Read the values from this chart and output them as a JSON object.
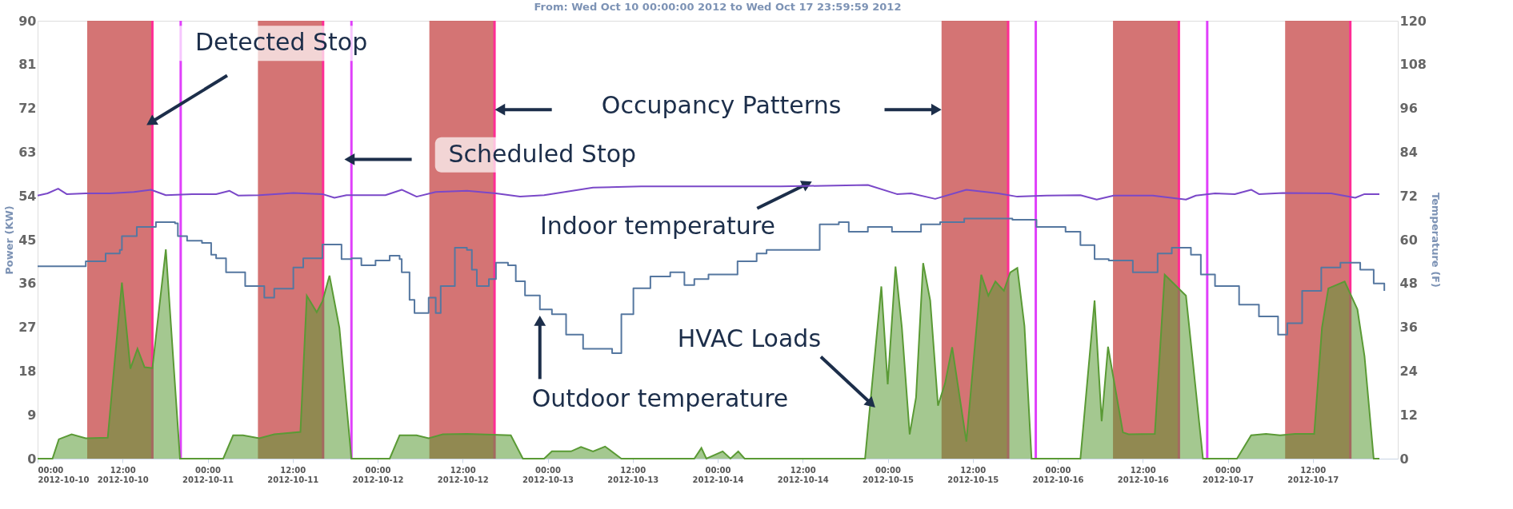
{
  "chart_data": {
    "type": "line",
    "title": "From: Wed Oct 10 00:00:00 2012 to Wed Oct 17 23:59:59 2012",
    "ylabel": "Power (KW)",
    "y2label": "Temperature (F)",
    "xlim": [
      "2012-10-10T00:00",
      "2012-10-18T00:00"
    ],
    "xticks": [
      {
        "value": "2012-10-10T00:00",
        "label": "00:00 2012-10-10"
      },
      {
        "value": "2012-10-10T12:00",
        "label": "12:00 2012-10-10"
      },
      {
        "value": "2012-10-11T00:00",
        "label": "00:00 2012-10-11"
      },
      {
        "value": "2012-10-11T12:00",
        "label": "12:00 2012-10-11"
      },
      {
        "value": "2012-10-12T00:00",
        "label": "00:00 2012-10-12"
      },
      {
        "value": "2012-10-12T12:00",
        "label": "12:00 2012-10-12"
      },
      {
        "value": "2012-10-13T00:00",
        "label": "00:00 2012-10-13"
      },
      {
        "value": "2012-10-13T12:00",
        "label": "12:00 2012-10-13"
      },
      {
        "value": "2012-10-14T00:00",
        "label": "00:00 2012-10-14"
      },
      {
        "value": "2012-10-14T12:00",
        "label": "12:00 2012-10-14"
      },
      {
        "value": "2012-10-15T00:00",
        "label": "00:00 2012-10-15"
      },
      {
        "value": "2012-10-15T12:00",
        "label": "12:00 2012-10-15"
      },
      {
        "value": "2012-10-16T00:00",
        "label": "00:00 2012-10-16"
      },
      {
        "value": "2012-10-16T12:00",
        "label": "12:00 2012-10-16"
      },
      {
        "value": "2012-10-17T00:00",
        "label": "00:00 2012-10-17"
      },
      {
        "value": "2012-10-17T12:00",
        "label": "12:00 2012-10-17"
      }
    ],
    "ylim": [
      0,
      90
    ],
    "yticks": [
      0,
      9,
      18,
      27,
      36,
      45,
      54,
      63,
      72,
      81,
      90
    ],
    "y2lim": [
      0,
      120
    ],
    "y2ticks": [
      0,
      12,
      24,
      36,
      48,
      60,
      72,
      84,
      96,
      108,
      120
    ],
    "grid": false,
    "series": [
      {
        "type": "area",
        "axis": "y",
        "color": "#5a9a35",
        "x": [
          "2012-10-10T00:00",
          "2012-10-10T02:06",
          "2012-10-10T03:00",
          "2012-10-10T04:48",
          "2012-10-10T06:48",
          "2012-10-10T09:54",
          "2012-10-10T11:54",
          "2012-10-10T13:06",
          "2012-10-10T14:06",
          "2012-10-10T15:06",
          "2012-10-10T16:12",
          "2012-10-10T18:06",
          "2012-10-10T20:06",
          "2012-10-11T02:12",
          "2012-10-11T03:36",
          "2012-10-11T05:00",
          "2012-10-11T07:18",
          "2012-10-11T09:24",
          "2012-10-11T13:06",
          "2012-10-11T14:00",
          "2012-10-11T15:24",
          "2012-10-11T16:12",
          "2012-10-11T17:12",
          "2012-10-11T18:36",
          "2012-10-11T20:18",
          "2012-10-12T01:42",
          "2012-10-12T03:06",
          "2012-10-12T05:30",
          "2012-10-12T07:12",
          "2012-10-12T09:12",
          "2012-10-12T12:36",
          "2012-10-12T18:48",
          "2012-10-12T20:30",
          "2012-10-12T23:30",
          "2012-10-13T00:36",
          "2012-10-13T03:18",
          "2012-10-13T04:42",
          "2012-10-13T06:24",
          "2012-10-13T08:06",
          "2012-10-13T10:24",
          "2012-10-13T20:42",
          "2012-10-13T21:42",
          "2012-10-13T22:24",
          "2012-10-14T00:42",
          "2012-10-14T01:48",
          "2012-10-14T02:54",
          "2012-10-14T03:48",
          "2012-10-14T20:48",
          "2012-10-14T23:06",
          "2012-10-15T00:00",
          "2012-10-15T01:06",
          "2012-10-15T02:00",
          "2012-10-15T03:06",
          "2012-10-15T04:00",
          "2012-10-15T05:00",
          "2012-10-15T06:00",
          "2012-10-15T07:06",
          "2012-10-15T08:06",
          "2012-10-15T09:06",
          "2012-10-15T11:06",
          "2012-10-15T13:12",
          "2012-10-15T14:12",
          "2012-10-15T15:12",
          "2012-10-15T16:24",
          "2012-10-15T17:18",
          "2012-10-15T18:18",
          "2012-10-15T19:18",
          "2012-10-15T20:18",
          "2012-10-16T03:12",
          "2012-10-16T05:12",
          "2012-10-16T06:12",
          "2012-10-16T07:06",
          "2012-10-16T09:12",
          "2012-10-16T10:00",
          "2012-10-16T13:42",
          "2012-10-16T15:06",
          "2012-10-16T18:06",
          "2012-10-16T20:30",
          "2012-10-17T01:18",
          "2012-10-17T03:18",
          "2012-10-17T05:24",
          "2012-10-17T07:24",
          "2012-10-17T09:30",
          "2012-10-17T12:12",
          "2012-10-17T13:18",
          "2012-10-17T14:12",
          "2012-10-17T16:30",
          "2012-10-17T18:18",
          "2012-10-17T19:18",
          "2012-10-17T20:36",
          "2012-10-17T21:24"
        ],
        "values": [
          0,
          0,
          4.0,
          5.0,
          4.2,
          4.3,
          36.2,
          18.5,
          22.6,
          18.8,
          18.6,
          43,
          0,
          0,
          4.8,
          4.8,
          4.2,
          5.0,
          5.5,
          33.5,
          30.1,
          32.3,
          37.6,
          26.9,
          0,
          0,
          4.8,
          4.8,
          4.2,
          5.0,
          5.1,
          4.8,
          0,
          0,
          1.5,
          1.5,
          2.4,
          1.5,
          2.5,
          0,
          0,
          2.2,
          0,
          1.5,
          0,
          1.5,
          0,
          0,
          35.4,
          15.3,
          39.5,
          26.9,
          5.0,
          12.6,
          40.2,
          32.5,
          10.9,
          15.5,
          22.9,
          3.5,
          37.8,
          33.5,
          36.4,
          34.5,
          38.3,
          39.2,
          27.3,
          0,
          0,
          32.5,
          7.7,
          23.0,
          5.4,
          5.0,
          5.1,
          37.8,
          33.5,
          0,
          0,
          4.8,
          5.1,
          4.8,
          5.1,
          5.1,
          26.9,
          35.0,
          36.4,
          30.7,
          21.1,
          0,
          0
        ]
      },
      {
        "axis": "y2",
        "color": "#7a48c8",
        "x": [
          "2012-10-10T00:00",
          "2012-10-10T01:24",
          "2012-10-10T02:54",
          "2012-10-10T04:06",
          "2012-10-10T06:48",
          "2012-10-10T10:12",
          "2012-10-10T13:36",
          "2012-10-10T16:00",
          "2012-10-10T18:06",
          "2012-10-10T21:48",
          "2012-10-11T01:12",
          "2012-10-11T03:06",
          "2012-10-11T04:18",
          "2012-10-11T07:18",
          "2012-10-11T12:06",
          "2012-10-11T16:12",
          "2012-10-11T17:54",
          "2012-10-11T19:36",
          "2012-10-12T01:06",
          "2012-10-12T03:24",
          "2012-10-12T05:30",
          "2012-10-12T08:12",
          "2012-10-12T12:36",
          "2012-10-12T16:42",
          "2012-10-12T20:06",
          "2012-10-12T23:30",
          "2012-10-13T06:24",
          "2012-10-13T13:12",
          "2012-10-13T22:42",
          "2012-10-14T08:54",
          "2012-10-14T21:12",
          "2012-10-15T01:18",
          "2012-10-15T03:18",
          "2012-10-15T06:42",
          "2012-10-15T11:06",
          "2012-10-15T15:36",
          "2012-10-15T18:18",
          "2012-10-15T22:24",
          "2012-10-16T03:12",
          "2012-10-16T05:30",
          "2012-10-16T07:54",
          "2012-10-16T13:24",
          "2012-10-16T18:06",
          "2012-10-16T19:30",
          "2012-10-16T22:12",
          "2012-10-17T01:00",
          "2012-10-17T03:18",
          "2012-10-17T04:24",
          "2012-10-17T07:48",
          "2012-10-17T14:36",
          "2012-10-17T18:00",
          "2012-10-17T19:18",
          "2012-10-17T21:24"
        ],
        "values": [
          72.1,
          72.7,
          74.0,
          72.5,
          72.7,
          72.7,
          73.1,
          73.7,
          72.2,
          72.5,
          72.5,
          73.4,
          72.1,
          72.2,
          72.8,
          72.5,
          71.5,
          72.2,
          72.2,
          73.7,
          71.8,
          73.1,
          73.4,
          72.7,
          71.8,
          72.2,
          74.3,
          74.6,
          74.6,
          74.6,
          75.0,
          72.5,
          72.7,
          71.2,
          73.7,
          72.7,
          71.8,
          72.1,
          72.2,
          71.0,
          72.1,
          72.1,
          71.0,
          72.1,
          72.7,
          72.5,
          73.7,
          72.5,
          72.8,
          72.7,
          71.5,
          72.5,
          72.5
        ]
      },
      {
        "type": "step",
        "axis": "y2",
        "color": "#5577a0",
        "x": [
          "2012-10-10T00:00",
          "2012-10-10T02:24",
          "2012-10-10T06:48",
          "2012-10-10T09:36",
          "2012-10-10T11:36",
          "2012-10-10T11:54",
          "2012-10-10T14:00",
          "2012-10-10T16:42",
          "2012-10-10T19:24",
          "2012-10-10T19:48",
          "2012-10-10T21:06",
          "2012-10-10T23:12",
          "2012-10-11T00:30",
          "2012-10-11T01:12",
          "2012-10-11T02:36",
          "2012-10-11T05:18",
          "2012-10-11T08:00",
          "2012-10-11T09:24",
          "2012-10-11T12:06",
          "2012-10-11T13:30",
          "2012-10-11T16:12",
          "2012-10-11T18:54",
          "2012-10-11T20:18",
          "2012-10-11T21:42",
          "2012-10-11T23:42",
          "2012-10-12T01:42",
          "2012-10-12T03:06",
          "2012-10-12T03:24",
          "2012-10-12T04:30",
          "2012-10-12T05:12",
          "2012-10-12T06:54",
          "2012-10-12T07:12",
          "2012-10-12T08:12",
          "2012-10-12T08:54",
          "2012-10-12T10:54",
          "2012-10-12T12:36",
          "2012-10-12T13:18",
          "2012-10-12T14:00",
          "2012-10-12T15:42",
          "2012-10-12T16:42",
          "2012-10-12T18:24",
          "2012-10-12T19:30",
          "2012-10-12T20:48",
          "2012-10-12T22:54",
          "2012-10-13T00:36",
          "2012-10-13T02:36",
          "2012-10-13T05:00",
          "2012-10-13T07:00",
          "2012-10-13T09:06",
          "2012-10-13T10:24",
          "2012-10-13T12:06",
          "2012-10-13T14:30",
          "2012-10-13T17:18",
          "2012-10-13T19:18",
          "2012-10-13T20:42",
          "2012-10-13T22:42",
          "2012-10-14T02:48",
          "2012-10-14T05:30",
          "2012-10-14T06:54",
          "2012-10-14T14:24",
          "2012-10-14T17:06",
          "2012-10-14T18:30",
          "2012-10-14T21:12",
          "2012-10-15T00:36",
          "2012-10-15T04:42",
          "2012-10-15T07:24",
          "2012-10-15T10:48",
          "2012-10-15T17:36",
          "2012-10-15T21:00",
          "2012-10-16T01:06",
          "2012-10-16T03:12",
          "2012-10-16T05:12",
          "2012-10-16T07:12",
          "2012-10-16T10:36",
          "2012-10-16T14:06",
          "2012-10-16T16:06",
          "2012-10-16T18:48",
          "2012-10-16T20:12",
          "2012-10-16T22:12",
          "2012-10-17T01:36",
          "2012-10-17T04:24",
          "2012-10-17T07:06",
          "2012-10-17T08:24",
          "2012-10-17T10:30",
          "2012-10-17T13:12",
          "2012-10-17T15:54",
          "2012-10-17T18:42",
          "2012-10-17T20:36",
          "2012-10-17T22:06"
        ],
        "values": [
          52.7,
          52.7,
          54.1,
          56.2,
          57.2,
          61.0,
          63.5,
          64.8,
          64.5,
          61.0,
          59.7,
          59.1,
          55.9,
          54.9,
          51.1,
          47.3,
          44.1,
          46.6,
          52.4,
          54.9,
          58.7,
          54.7,
          54.9,
          53.0,
          54.3,
          55.6,
          54.7,
          51.1,
          43.5,
          39.9,
          39.9,
          44.1,
          39.9,
          47.3,
          57.8,
          57.2,
          51.8,
          47.3,
          49.2,
          53.7,
          53.0,
          48.6,
          44.7,
          40.9,
          39.6,
          34.0,
          30.1,
          30.1,
          28.9,
          39.6,
          46.7,
          49.9,
          51.1,
          47.6,
          49.2,
          50.5,
          54.1,
          56.2,
          57.2,
          64.2,
          64.8,
          62.2,
          63.5,
          62.2,
          64.2,
          64.8,
          65.8,
          65.5,
          63.5,
          62.2,
          58.5,
          54.7,
          54.3,
          51.1,
          56.2,
          57.8,
          55.9,
          50.5,
          47.3,
          42.2,
          39.0,
          34.0,
          37.1,
          46.0,
          52.4,
          53.7,
          51.8,
          48.0,
          46.0
        ]
      }
    ],
    "bands": [
      {
        "axis": "x",
        "from": "2012-10-10T07:00",
        "to": "2012-10-10T16:12",
        "color": "#cd5c5c"
      },
      {
        "axis": "x",
        "from": "2012-10-11T07:06",
        "to": "2012-10-11T16:18",
        "color": "#cd5c5c"
      },
      {
        "axis": "x",
        "from": "2012-10-12T07:18",
        "to": "2012-10-12T16:30",
        "color": "#cd5c5c"
      },
      {
        "axis": "x",
        "from": "2012-10-15T07:36",
        "to": "2012-10-15T17:00",
        "color": "#cd5c5c"
      },
      {
        "axis": "x",
        "from": "2012-10-16T07:48",
        "to": "2012-10-16T17:06",
        "color": "#cd5c5c"
      },
      {
        "axis": "x",
        "from": "2012-10-17T08:06",
        "to": "2012-10-17T17:18",
        "color": "#cd5c5c"
      }
    ],
    "ref_lines": [
      {
        "axis": "x",
        "value": "2012-10-10T16:12",
        "color": "#ff2d95"
      },
      {
        "axis": "x",
        "value": "2012-10-11T16:18",
        "color": "#ff2d95"
      },
      {
        "axis": "x",
        "value": "2012-10-12T16:30",
        "color": "#ff2d95"
      },
      {
        "axis": "x",
        "value": "2012-10-15T17:00",
        "color": "#ff2d95"
      },
      {
        "axis": "x",
        "value": "2012-10-16T17:06",
        "color": "#ff2d95"
      },
      {
        "axis": "x",
        "value": "2012-10-17T17:18",
        "color": "#ff2d95"
      },
      {
        "axis": "x",
        "value": "2012-10-10T20:12",
        "color": "#e040fb"
      },
      {
        "axis": "x",
        "value": "2012-10-11T20:18",
        "color": "#e040fb"
      },
      {
        "axis": "x",
        "value": "2012-10-15T20:54",
        "color": "#e040fb"
      },
      {
        "axis": "x",
        "value": "2012-10-16T21:06",
        "color": "#e040fb"
      }
    ],
    "annotations": [
      {
        "text": "Detected  Stop",
        "x": "2012-10-10T16:12",
        "y": 69.3
      },
      "Scheduled Stop",
      "Occupancy Patterns",
      "Indoor temperature",
      "Outdoor temperature",
      "HVAC Loads"
    ]
  }
}
